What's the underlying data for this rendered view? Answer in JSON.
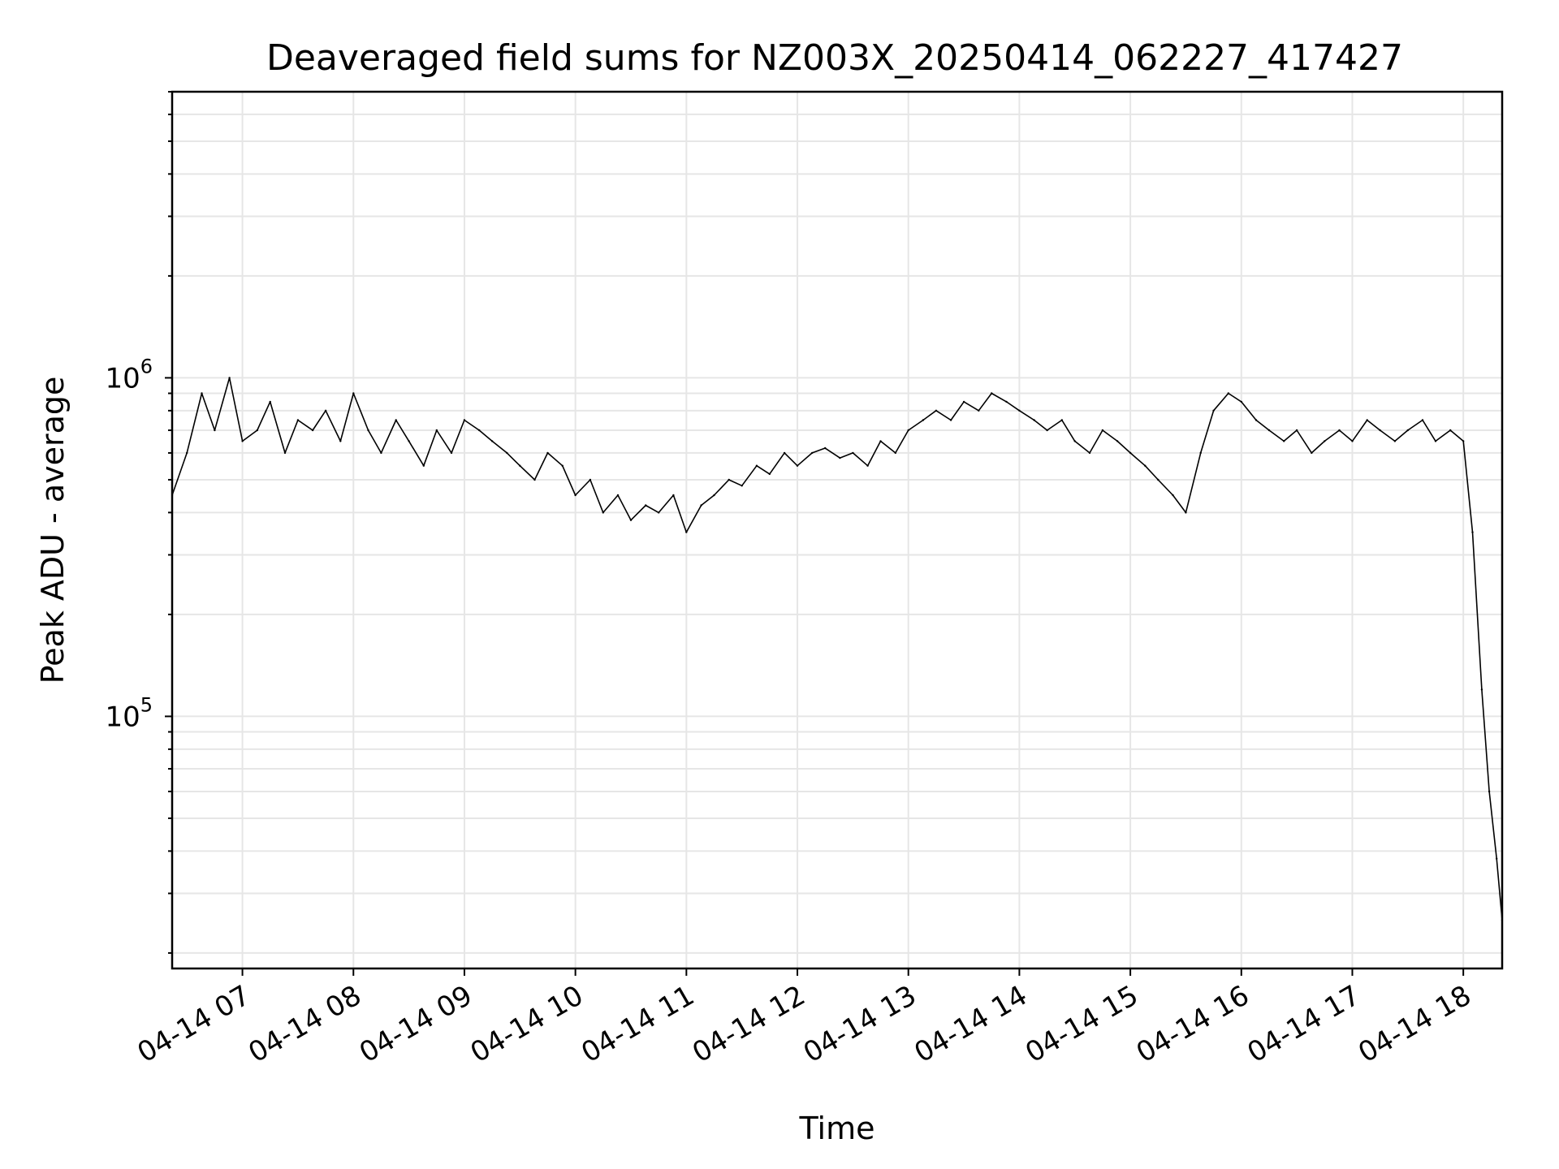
{
  "chart_data": {
    "type": "line",
    "title": "Deaveraged field sums for NZ003X_20250414_062227_417427",
    "xlabel": "Time",
    "ylabel": "Peak ADU - average",
    "yscale": "log",
    "ylim": [
      18000,
      7000000
    ],
    "xlim": [
      "2025-04-14 06:22",
      "2025-04-14 18:21"
    ],
    "grid": true,
    "grid_minor_y": true,
    "line_color": "#000000",
    "x_ticks": [
      {
        "value": "2025-04-14 07:00",
        "label": "04-14 07"
      },
      {
        "value": "2025-04-14 08:00",
        "label": "04-14 08"
      },
      {
        "value": "2025-04-14 09:00",
        "label": "04-14 09"
      },
      {
        "value": "2025-04-14 10:00",
        "label": "04-14 10"
      },
      {
        "value": "2025-04-14 11:00",
        "label": "04-14 11"
      },
      {
        "value": "2025-04-14 12:00",
        "label": "04-14 12"
      },
      {
        "value": "2025-04-14 13:00",
        "label": "04-14 13"
      },
      {
        "value": "2025-04-14 14:00",
        "label": "04-14 14"
      },
      {
        "value": "2025-04-14 15:00",
        "label": "04-14 15"
      },
      {
        "value": "2025-04-14 16:00",
        "label": "04-14 16"
      },
      {
        "value": "2025-04-14 17:00",
        "label": "04-14 17"
      },
      {
        "value": "2025-04-14 18:00",
        "label": "04-14 18"
      }
    ],
    "y_ticks": [
      {
        "value": 100000,
        "base": "10",
        "exp": "5"
      },
      {
        "value": 1000000,
        "base": "10",
        "exp": "6"
      }
    ],
    "series": [
      {
        "name": "",
        "x": [
          "2025-04-14 06:22",
          "2025-04-14 06:30",
          "2025-04-14 06:38",
          "2025-04-14 06:45",
          "2025-04-14 06:53",
          "2025-04-14 07:00",
          "2025-04-14 07:08",
          "2025-04-14 07:15",
          "2025-04-14 07:23",
          "2025-04-14 07:30",
          "2025-04-14 07:38",
          "2025-04-14 07:45",
          "2025-04-14 07:53",
          "2025-04-14 08:00",
          "2025-04-14 08:08",
          "2025-04-14 08:15",
          "2025-04-14 08:23",
          "2025-04-14 08:30",
          "2025-04-14 08:38",
          "2025-04-14 08:45",
          "2025-04-14 08:53",
          "2025-04-14 09:00",
          "2025-04-14 09:08",
          "2025-04-14 09:15",
          "2025-04-14 09:23",
          "2025-04-14 09:30",
          "2025-04-14 09:38",
          "2025-04-14 09:45",
          "2025-04-14 09:53",
          "2025-04-14 10:00",
          "2025-04-14 10:08",
          "2025-04-14 10:15",
          "2025-04-14 10:23",
          "2025-04-14 10:30",
          "2025-04-14 10:38",
          "2025-04-14 10:45",
          "2025-04-14 10:53",
          "2025-04-14 11:00",
          "2025-04-14 11:08",
          "2025-04-14 11:15",
          "2025-04-14 11:23",
          "2025-04-14 11:30",
          "2025-04-14 11:38",
          "2025-04-14 11:45",
          "2025-04-14 11:53",
          "2025-04-14 12:00",
          "2025-04-14 12:08",
          "2025-04-14 12:15",
          "2025-04-14 12:23",
          "2025-04-14 12:30",
          "2025-04-14 12:38",
          "2025-04-14 12:45",
          "2025-04-14 12:53",
          "2025-04-14 13:00",
          "2025-04-14 13:08",
          "2025-04-14 13:15",
          "2025-04-14 13:23",
          "2025-04-14 13:30",
          "2025-04-14 13:38",
          "2025-04-14 13:45",
          "2025-04-14 13:53",
          "2025-04-14 14:00",
          "2025-04-14 14:08",
          "2025-04-14 14:15",
          "2025-04-14 14:23",
          "2025-04-14 14:30",
          "2025-04-14 14:38",
          "2025-04-14 14:45",
          "2025-04-14 14:53",
          "2025-04-14 15:00",
          "2025-04-14 15:08",
          "2025-04-14 15:15",
          "2025-04-14 15:23",
          "2025-04-14 15:30",
          "2025-04-14 15:38",
          "2025-04-14 15:45",
          "2025-04-14 15:53",
          "2025-04-14 16:00",
          "2025-04-14 16:08",
          "2025-04-14 16:15",
          "2025-04-14 16:23",
          "2025-04-14 16:30",
          "2025-04-14 16:38",
          "2025-04-14 16:45",
          "2025-04-14 16:53",
          "2025-04-14 17:00",
          "2025-04-14 17:08",
          "2025-04-14 17:15",
          "2025-04-14 17:23",
          "2025-04-14 17:30",
          "2025-04-14 17:38",
          "2025-04-14 17:45",
          "2025-04-14 17:53",
          "2025-04-14 18:00",
          "2025-04-14 18:05",
          "2025-04-14 18:10",
          "2025-04-14 18:14",
          "2025-04-14 18:18",
          "2025-04-14 18:21"
        ],
        "values": [
          450000,
          600000,
          900000,
          700000,
          1000000,
          650000,
          700000,
          850000,
          600000,
          750000,
          700000,
          800000,
          650000,
          900000,
          700000,
          600000,
          750000,
          650000,
          550000,
          700000,
          600000,
          750000,
          700000,
          650000,
          600000,
          550000,
          500000,
          600000,
          550000,
          450000,
          500000,
          400000,
          450000,
          380000,
          420000,
          400000,
          450000,
          350000,
          420000,
          450000,
          500000,
          480000,
          550000,
          520000,
          600000,
          550000,
          600000,
          620000,
          580000,
          600000,
          550000,
          650000,
          600000,
          700000,
          750000,
          800000,
          750000,
          850000,
          800000,
          900000,
          850000,
          800000,
          750000,
          700000,
          750000,
          650000,
          600000,
          700000,
          650000,
          600000,
          550000,
          500000,
          450000,
          400000,
          600000,
          800000,
          900000,
          850000,
          750000,
          700000,
          650000,
          700000,
          600000,
          650000,
          700000,
          650000,
          750000,
          700000,
          650000,
          700000,
          750000,
          650000,
          700000,
          650000,
          350000,
          120000,
          60000,
          38000,
          25000
        ]
      }
    ]
  }
}
